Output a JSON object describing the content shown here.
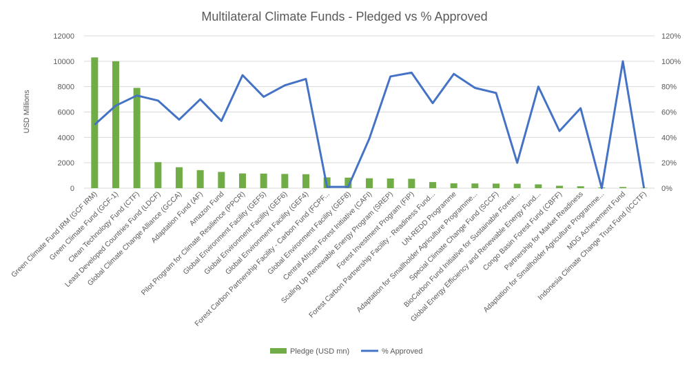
{
  "chart_data": {
    "type": "bar",
    "title": "Multilateral Climate Funds - Pledged vs % Approved",
    "ylabel": "USD Millions",
    "y2label": "",
    "ylim": [
      0,
      12000
    ],
    "y2lim": [
      0,
      1.2
    ],
    "yticks": [
      "0",
      "2000",
      "4000",
      "6000",
      "8000",
      "10000",
      "12000"
    ],
    "y2ticks": [
      "0%",
      "20%",
      "40%",
      "60%",
      "80%",
      "100%",
      "120%"
    ],
    "grid": true,
    "legend_position": "bottom",
    "categories": [
      "Green Climate Fund IRM (GCF IRM)",
      "Green Climate Fund (GCF-1)",
      "Clean Technology Fund (CTF)",
      "Least Developed Countries Fund (LDCF)",
      "Global Climate Change Alliance (GCCA)",
      "Adaptation Fund (AF)",
      "Amazon Fund",
      "Pilot Program for Climate Resilience (PPCR)",
      "Global Environment Facility (GEF5)",
      "Global Environment Facility (GEF6)",
      "Global Environment Facility (GEF4)",
      "Forest Carbon Partnership Facility - Carbon Fund (FCPF...",
      "Global Environment Facility (GEF8)",
      "Central African Forest Initiative (CAFI)",
      "Scaling Up Renewable Energy Program (SREP)",
      "Forest Investment Program (FIP)",
      "Forest Carbon Partnership Facility - Readiness Fund...",
      "UN-REDD Programme",
      "Adaptation for Smallholder Agriculture Programme...",
      "Special Climate Change Fund (SCCF)",
      "BioCarbon Fund Initiative for Sustainable Forest...",
      "Global Energy Efficiency and Renewable Energy Fund...",
      "Congo Basin Forest Fund (CBFF)",
      "Partnership for Market Readiness",
      "Adaptation for Smallholder Agriculture Programme...",
      "MDG Achievement Fund",
      "Indonesia Climate Change Trust Fund (ICCTF)"
    ],
    "series": [
      {
        "name": "Pledge (USD mn)",
        "type": "bar",
        "axis": "left",
        "color": "#70AD47",
        "values": [
          10300,
          10000,
          7900,
          2050,
          1650,
          1420,
          1280,
          1160,
          1150,
          1120,
          1100,
          850,
          830,
          780,
          760,
          740,
          480,
          380,
          370,
          360,
          350,
          300,
          190,
          150,
          60,
          90,
          30
        ]
      },
      {
        "name": "% Approved",
        "type": "line",
        "axis": "right",
        "color": "#4472C4",
        "values": [
          0.5,
          0.65,
          0.73,
          0.69,
          0.54,
          0.7,
          0.53,
          0.89,
          0.72,
          0.81,
          0.86,
          0.01,
          0.01,
          0.39,
          0.88,
          0.91,
          0.67,
          0.9,
          0.79,
          0.75,
          0.2,
          0.8,
          0.45,
          0.63,
          0.0,
          1.0,
          0.0
        ]
      }
    ]
  }
}
